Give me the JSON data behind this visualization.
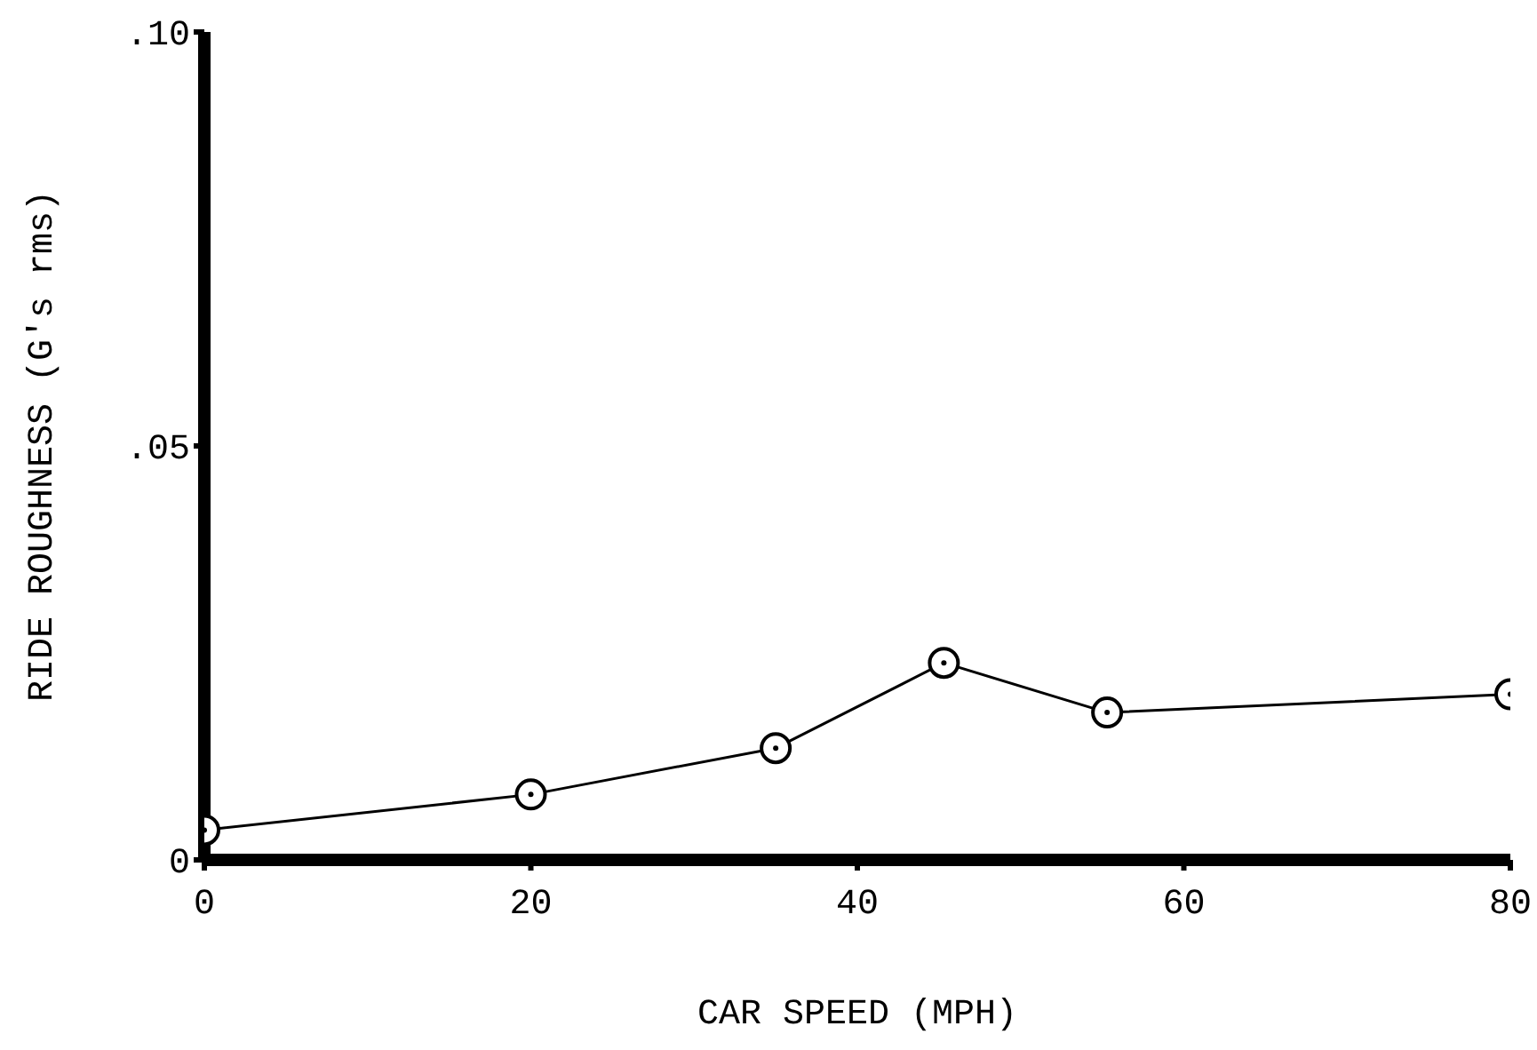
{
  "chart_data": {
    "type": "line",
    "xlabel": "CAR SPEED (MPH)",
    "ylabel": "RIDE ROUGHNESS (G's rms)",
    "x": [
      0,
      20,
      35,
      45.3,
      55.3,
      80
    ],
    "series": [
      {
        "color": "#000000",
        "values": [
          0.0036,
          0.0079,
          0.0135,
          0.0238,
          0.0178,
          0.02
        ]
      }
    ],
    "xlim": [
      0,
      80
    ],
    "xticks": [
      0,
      20,
      40,
      60,
      80
    ],
    "ylim": [
      0,
      0.1
    ],
    "yticks": [
      {
        "value": 0,
        "label": "0"
      },
      {
        "value": 0.05,
        "label": ".05"
      },
      {
        "value": 0.1,
        "label": ".10"
      }
    ],
    "marker": "circle",
    "line_style": "solid",
    "grid": false,
    "legend": false
  }
}
